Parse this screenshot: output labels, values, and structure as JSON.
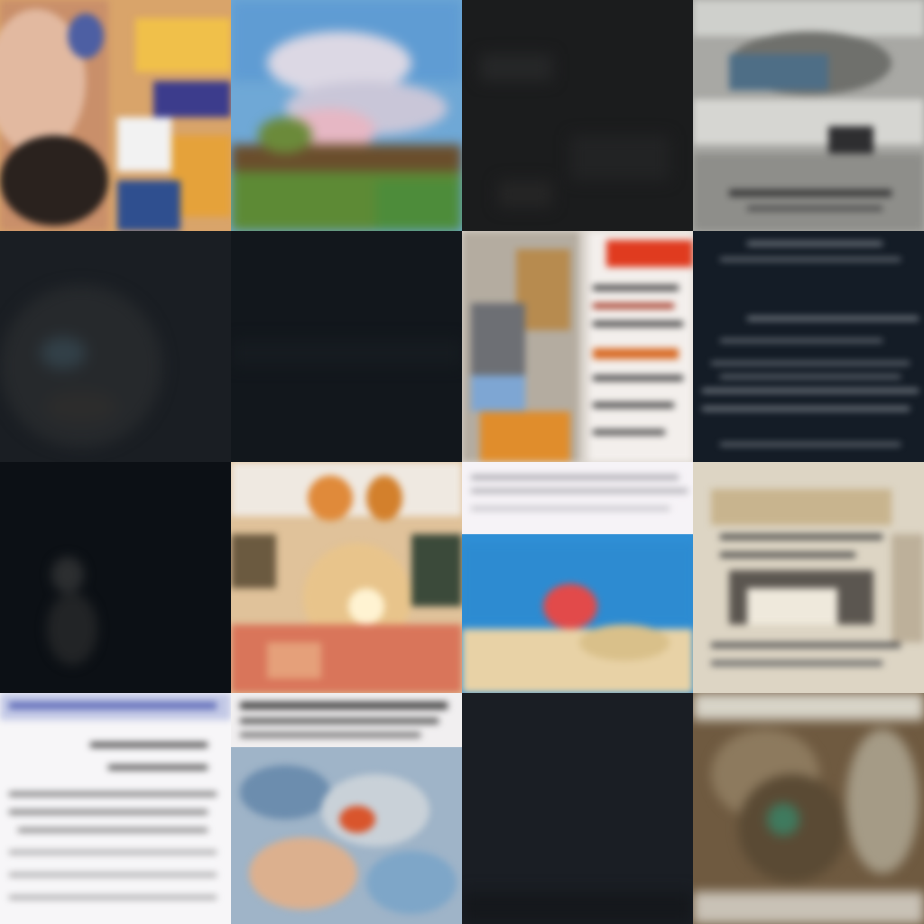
{
  "grid": {
    "rows": 4,
    "columns": 4,
    "tiles": [
      {
        "row": 1,
        "col": 1,
        "kind": "abstract-portrait",
        "base_color": "#d9a46a"
      },
      {
        "row": 1,
        "col": 2,
        "kind": "landscape-painting",
        "base_color": "#6fa8d6"
      },
      {
        "row": 1,
        "col": 3,
        "kind": "dark-noise",
        "base_color": "#1b1c1d"
      },
      {
        "row": 1,
        "col": 4,
        "kind": "grey-scene",
        "base_color": "#a8a8a4"
      },
      {
        "row": 2,
        "col": 1,
        "kind": "dark-face",
        "base_color": "#1a1e23"
      },
      {
        "row": 2,
        "col": 2,
        "kind": "dark-noise",
        "base_color": "#12171c"
      },
      {
        "row": 2,
        "col": 3,
        "kind": "collage-with-text",
        "base_color": "#dcd6cf"
      },
      {
        "row": 2,
        "col": 4,
        "kind": "dark-text-page",
        "base_color": "#141c26"
      },
      {
        "row": 3,
        "col": 1,
        "kind": "dark-figure",
        "base_color": "#0c1015"
      },
      {
        "row": 3,
        "col": 2,
        "kind": "colorful-abstract",
        "base_color": "#e0c29a"
      },
      {
        "row": 3,
        "col": 3,
        "kind": "blue-painting-with-text",
        "base_color": "#2f8fd6"
      },
      {
        "row": 3,
        "col": 4,
        "kind": "sepia-document",
        "base_color": "#ddd5c4"
      },
      {
        "row": 4,
        "col": 1,
        "kind": "white-text-page",
        "base_color": "#f7f6f8"
      },
      {
        "row": 4,
        "col": 2,
        "kind": "text-header-with-abstract",
        "base_color": "#9fb4c8"
      },
      {
        "row": 4,
        "col": 3,
        "kind": "dark-noise",
        "base_color": "#1a1e24"
      },
      {
        "row": 4,
        "col": 4,
        "kind": "brown-blurred-scene",
        "base_color": "#6f5a40"
      }
    ]
  }
}
